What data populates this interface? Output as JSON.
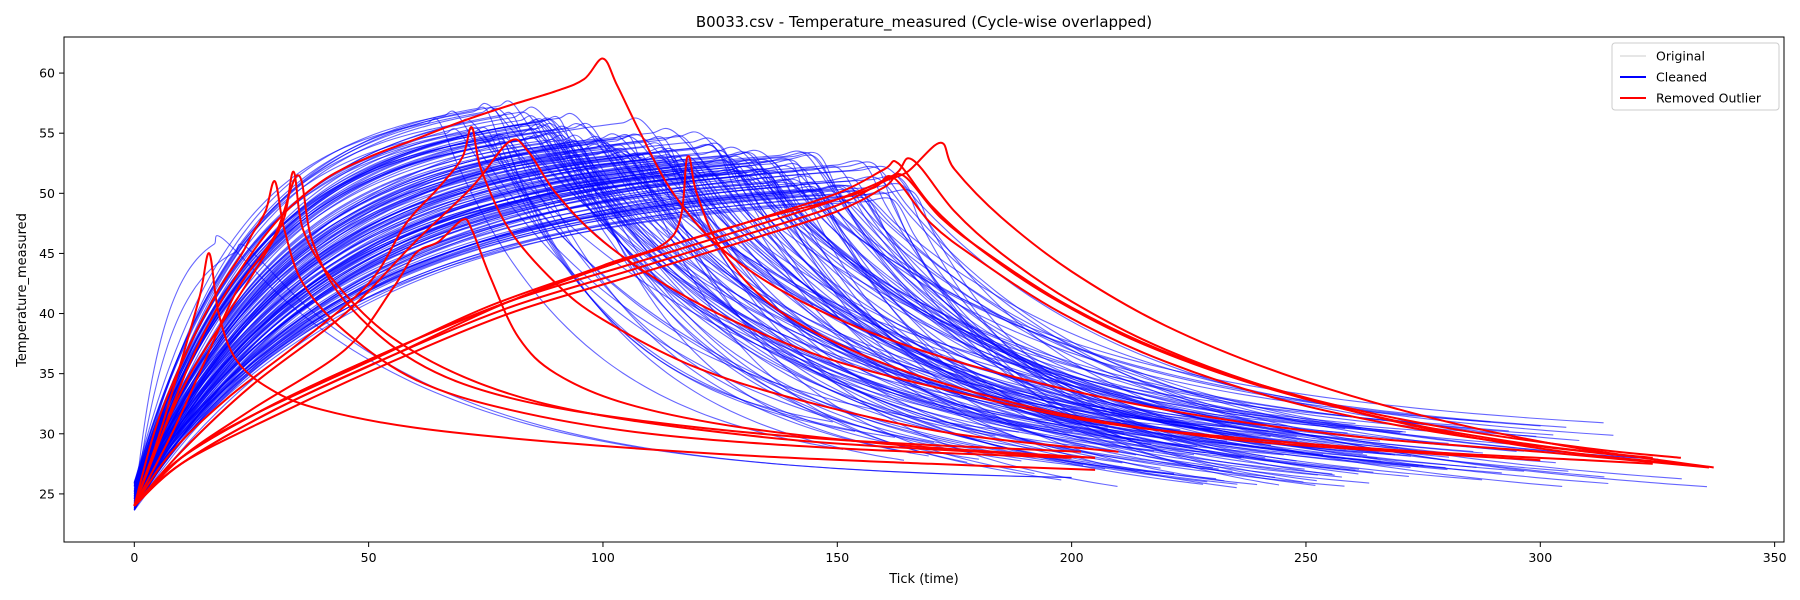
{
  "chart_data": {
    "type": "line",
    "title": "B0033.csv - Temperature_measured (Cycle-wise overlapped)",
    "xlabel": "Tick (time)",
    "ylabel": "Temperature_measured",
    "xlim": [
      -15,
      352
    ],
    "ylim": [
      21,
      63
    ],
    "xticks": [
      0,
      50,
      100,
      150,
      200,
      250,
      300,
      350
    ],
    "yticks": [
      25,
      30,
      35,
      40,
      45,
      50,
      55,
      60
    ],
    "grid": false,
    "legend": {
      "position": "top-right",
      "entries": [
        {
          "label": "Original",
          "color": "#cccccc"
        },
        {
          "label": "Cleaned",
          "color": "#0000ff"
        },
        {
          "label": "Removed Outlier",
          "color": "#ff0000"
        }
      ]
    },
    "colors": {
      "original": "#cccccc",
      "cleaned": "#0000ff",
      "outlier": "#ff0000"
    },
    "series": [
      {
        "group": "outlier",
        "points": [
          [
            0,
            24.0
          ],
          [
            5,
            29.5
          ],
          [
            10,
            36.0
          ],
          [
            14,
            41.5
          ],
          [
            16,
            45.0
          ],
          [
            18,
            40.0
          ],
          [
            22,
            36.0
          ],
          [
            30,
            33.5
          ],
          [
            40,
            32.0
          ],
          [
            60,
            30.5
          ],
          [
            90,
            29.3
          ],
          [
            130,
            28.2
          ],
          [
            170,
            27.5
          ],
          [
            205,
            27.0
          ]
        ]
      },
      {
        "group": "outlier",
        "points": [
          [
            0,
            24.0
          ],
          [
            5,
            31.0
          ],
          [
            12,
            37.5
          ],
          [
            18,
            42.0
          ],
          [
            23,
            45.0
          ],
          [
            25,
            46.5
          ],
          [
            28,
            48.5
          ],
          [
            30,
            51.0
          ],
          [
            32,
            47.0
          ],
          [
            36,
            42.5
          ],
          [
            45,
            38.5
          ],
          [
            60,
            34.5
          ],
          [
            80,
            32.0
          ],
          [
            110,
            30.0
          ],
          [
            150,
            28.8
          ],
          [
            200,
            28.0
          ]
        ]
      },
      {
        "group": "outlier",
        "points": [
          [
            0,
            24.0
          ],
          [
            6,
            30.0
          ],
          [
            12,
            35.0
          ],
          [
            20,
            40.0
          ],
          [
            28,
            45.0
          ],
          [
            32,
            48.0
          ],
          [
            34,
            51.8
          ],
          [
            36,
            47.0
          ],
          [
            42,
            43.0
          ],
          [
            55,
            38.0
          ],
          [
            75,
            34.0
          ],
          [
            100,
            31.5
          ],
          [
            140,
            29.5
          ],
          [
            180,
            28.5
          ],
          [
            205,
            28.0
          ]
        ]
      },
      {
        "group": "outlier",
        "points": [
          [
            0,
            24.0
          ],
          [
            8,
            30.0
          ],
          [
            15,
            36.0
          ],
          [
            22,
            42.0
          ],
          [
            30,
            46.5
          ],
          [
            35,
            51.5
          ],
          [
            38,
            46.0
          ],
          [
            45,
            41.0
          ],
          [
            60,
            36.0
          ],
          [
            80,
            33.0
          ],
          [
            110,
            31.0
          ],
          [
            150,
            29.5
          ],
          [
            202,
            28.5
          ]
        ]
      },
      {
        "group": "outlier",
        "points": [
          [
            0,
            24.0
          ],
          [
            5,
            29.0
          ],
          [
            12,
            36.0
          ],
          [
            20,
            42.0
          ],
          [
            30,
            47.5
          ],
          [
            40,
            51.0
          ],
          [
            50,
            53.0
          ],
          [
            60,
            54.5
          ],
          [
            70,
            56.0
          ],
          [
            80,
            57.3
          ],
          [
            90,
            58.5
          ],
          [
            96,
            59.5
          ],
          [
            100,
            61.2
          ],
          [
            103,
            59.0
          ],
          [
            108,
            55.0
          ],
          [
            115,
            50.0
          ],
          [
            125,
            45.5
          ],
          [
            140,
            41.5
          ],
          [
            160,
            38.0
          ],
          [
            185,
            35.0
          ],
          [
            220,
            32.0
          ],
          [
            260,
            29.8
          ],
          [
            300,
            28.5
          ],
          [
            336,
            27.2
          ]
        ]
      },
      {
        "group": "outlier",
        "points": [
          [
            0,
            24.0
          ],
          [
            8,
            28.5
          ],
          [
            20,
            33.0
          ],
          [
            35,
            37.5
          ],
          [
            50,
            42.5
          ],
          [
            58,
            47.5
          ],
          [
            65,
            50.5
          ],
          [
            70,
            53.0
          ],
          [
            72,
            55.5
          ],
          [
            74,
            52.0
          ],
          [
            80,
            47.0
          ],
          [
            90,
            42.5
          ],
          [
            100,
            39.5
          ],
          [
            120,
            35.5
          ],
          [
            145,
            32.5
          ],
          [
            175,
            30.0
          ],
          [
            210,
            28.5
          ]
        ]
      },
      {
        "group": "outlier",
        "points": [
          [
            0,
            24.0
          ],
          [
            10,
            28.0
          ],
          [
            25,
            32.0
          ],
          [
            45,
            37.0
          ],
          [
            55,
            42.0
          ],
          [
            60,
            45.0
          ],
          [
            65,
            46.0
          ],
          [
            70,
            47.8
          ],
          [
            72,
            47.0
          ],
          [
            76,
            43.0
          ],
          [
            82,
            38.0
          ],
          [
            90,
            35.0
          ],
          [
            105,
            32.5
          ],
          [
            130,
            30.5
          ],
          [
            165,
            29.0
          ],
          [
            205,
            28.0
          ]
        ]
      },
      {
        "group": "outlier",
        "points": [
          [
            0,
            24.0
          ],
          [
            10,
            28.5
          ],
          [
            25,
            34.0
          ],
          [
            45,
            40.0
          ],
          [
            60,
            46.0
          ],
          [
            72,
            50.5
          ],
          [
            80,
            54.3
          ],
          [
            84,
            53.5
          ],
          [
            90,
            50.0
          ],
          [
            100,
            46.0
          ],
          [
            115,
            42.0
          ],
          [
            130,
            39.0
          ],
          [
            150,
            36.0
          ],
          [
            175,
            33.5
          ],
          [
            205,
            31.0
          ],
          [
            240,
            29.5
          ],
          [
            275,
            28.5
          ],
          [
            310,
            27.8
          ],
          [
            324,
            27.5
          ]
        ]
      },
      {
        "group": "outlier",
        "points": [
          [
            0,
            24.0
          ],
          [
            10,
            28.0
          ],
          [
            25,
            31.5
          ],
          [
            50,
            36.0
          ],
          [
            75,
            40.5
          ],
          [
            100,
            44.0
          ],
          [
            115,
            46.5
          ],
          [
            118,
            53.0
          ],
          [
            120,
            50.0
          ],
          [
            125,
            45.5
          ],
          [
            135,
            41.0
          ],
          [
            150,
            37.5
          ],
          [
            170,
            34.5
          ],
          [
            200,
            31.5
          ],
          [
            235,
            29.5
          ],
          [
            270,
            28.5
          ],
          [
            300,
            27.8
          ]
        ]
      },
      {
        "group": "outlier",
        "points": [
          [
            0,
            24.0
          ],
          [
            10,
            28.0
          ],
          [
            30,
            32.5
          ],
          [
            55,
            37.0
          ],
          [
            80,
            41.0
          ],
          [
            105,
            44.5
          ],
          [
            130,
            47.5
          ],
          [
            150,
            50.0
          ],
          [
            160,
            52.0
          ],
          [
            163,
            52.5
          ],
          [
            170,
            49.0
          ],
          [
            180,
            45.5
          ],
          [
            195,
            41.5
          ],
          [
            215,
            37.5
          ],
          [
            240,
            34.0
          ],
          [
            270,
            31.0
          ],
          [
            300,
            29.0
          ],
          [
            324,
            28.0
          ]
        ]
      },
      {
        "group": "outlier",
        "points": [
          [
            0,
            24.0
          ],
          [
            10,
            28.0
          ],
          [
            30,
            32.5
          ],
          [
            55,
            37.0
          ],
          [
            80,
            41.0
          ],
          [
            105,
            44.0
          ],
          [
            130,
            47.0
          ],
          [
            150,
            49.5
          ],
          [
            162,
            51.5
          ],
          [
            166,
            52.8
          ],
          [
            175,
            48.5
          ],
          [
            185,
            45.0
          ],
          [
            200,
            41.0
          ],
          [
            220,
            37.0
          ],
          [
            245,
            33.5
          ],
          [
            275,
            30.5
          ],
          [
            305,
            28.5
          ],
          [
            330,
            27.5
          ]
        ]
      },
      {
        "group": "outlier",
        "points": [
          [
            0,
            24.0
          ],
          [
            10,
            27.5
          ],
          [
            30,
            32.0
          ],
          [
            55,
            36.5
          ],
          [
            80,
            40.5
          ],
          [
            105,
            43.5
          ],
          [
            130,
            46.5
          ],
          [
            150,
            49.0
          ],
          [
            160,
            51.0
          ],
          [
            165,
            51.8
          ],
          [
            172,
            54.2
          ],
          [
            175,
            52.0
          ],
          [
            185,
            48.0
          ],
          [
            200,
            43.5
          ],
          [
            220,
            39.0
          ],
          [
            245,
            35.0
          ],
          [
            275,
            31.5
          ],
          [
            305,
            29.0
          ],
          [
            337,
            27.2
          ]
        ]
      },
      {
        "group": "outlier",
        "points": [
          [
            0,
            24.0
          ],
          [
            10,
            27.5
          ],
          [
            30,
            31.5
          ],
          [
            55,
            36.0
          ],
          [
            80,
            40.0
          ],
          [
            105,
            43.0
          ],
          [
            130,
            46.0
          ],
          [
            150,
            48.5
          ],
          [
            160,
            50.5
          ],
          [
            164,
            51.5
          ],
          [
            172,
            48.0
          ],
          [
            182,
            45.0
          ],
          [
            200,
            40.5
          ],
          [
            222,
            36.5
          ],
          [
            250,
            33.0
          ],
          [
            280,
            30.5
          ],
          [
            310,
            28.8
          ],
          [
            330,
            28.0
          ]
        ]
      },
      {
        "group": "outlier",
        "points": [
          [
            0,
            24.0
          ],
          [
            10,
            27.5
          ],
          [
            30,
            32.0
          ],
          [
            55,
            36.5
          ],
          [
            80,
            41.0
          ],
          [
            105,
            44.5
          ],
          [
            130,
            47.5
          ],
          [
            150,
            49.5
          ],
          [
            158,
            50.5
          ],
          [
            162,
            51.3
          ],
          [
            170,
            47.5
          ],
          [
            180,
            44.5
          ],
          [
            198,
            40.0
          ],
          [
            220,
            36.0
          ],
          [
            248,
            32.5
          ],
          [
            280,
            30.0
          ],
          [
            310,
            28.5
          ],
          [
            323,
            28.0
          ]
        ]
      }
    ]
  }
}
